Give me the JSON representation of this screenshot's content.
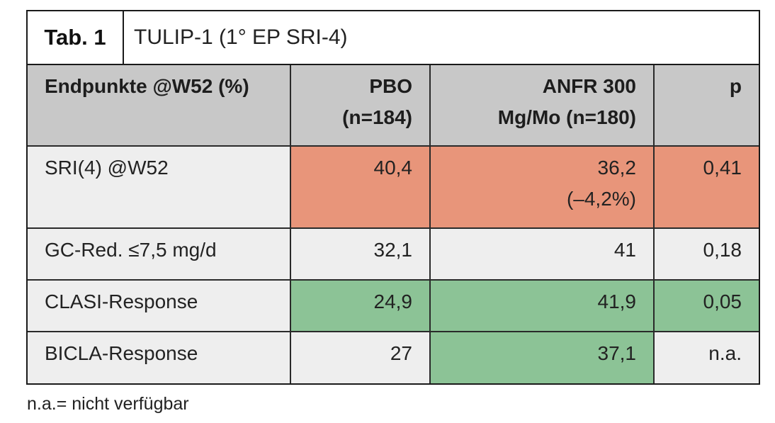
{
  "table": {
    "tab_label": "Tab. 1",
    "title": "TULIP-1 (1° EP SRI-4)",
    "headers": {
      "endpoints": "Endpunkte @W52 (%)",
      "pbo_line1": "PBO",
      "pbo_line2": "(n=184)",
      "anfr_line1": "ANFR 300",
      "anfr_line2": "Mg/Mo (n=180)",
      "p": "p"
    },
    "rows": [
      {
        "label": "SRI(4) @W52",
        "pbo": "40,4",
        "anfr": "36,2",
        "anfr_sub": "(–4,2%)",
        "p": "0,41"
      },
      {
        "label": "GC-Red. ≤7,5 mg/d",
        "pbo": "32,1",
        "anfr": "41",
        "p": "0,18"
      },
      {
        "label": "CLASI-Response",
        "pbo": "24,9",
        "anfr": "41,9",
        "p": "0,05"
      },
      {
        "label": "BICLA-Response",
        "pbo": "27",
        "anfr": "37,1",
        "p": "n.a."
      }
    ]
  },
  "colors": {
    "header_bg": "#c8c8c8",
    "unfavorable": "#e8957a",
    "favorable": "#8cc396",
    "neutral": "#eeeeee"
  },
  "footnote": "n.a.= nicht verfügbar"
}
